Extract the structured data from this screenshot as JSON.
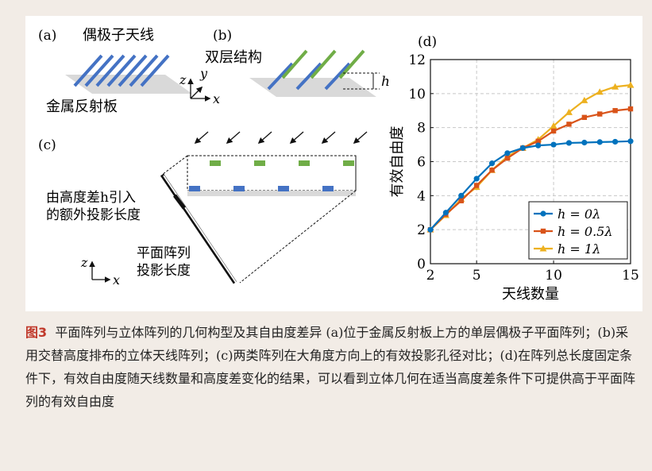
{
  "panel_a": {
    "label": "(a)",
    "title": "偶极子天线",
    "reflector": "金属反射板"
  },
  "panel_b": {
    "label": "(b)",
    "title": "双层结构",
    "height_label": "h"
  },
  "axes_labels": {
    "z": "z",
    "y": "y",
    "x": "x"
  },
  "panel_c": {
    "label": "(c)",
    "extra_line1": "由高度差h引入",
    "extra_line2": "的额外投影长度",
    "planar_line1": "平面阵列",
    "planar_line2": "投影长度",
    "z": "z",
    "x": "x"
  },
  "colors": {
    "blue": "#4472c4",
    "green": "#70ad47",
    "series_blue": "#0072bd",
    "series_orange": "#d95319",
    "series_yellow": "#edb120",
    "caption_label": "#c0392b",
    "background": "#f2ece6"
  },
  "chart_data": {
    "type": "line",
    "panel_label": "(d)",
    "xlabel": "天线数量",
    "ylabel": "有效自由度",
    "xlim": [
      2,
      15
    ],
    "ylim": [
      0,
      12
    ],
    "xticks": [
      2,
      5,
      10,
      15
    ],
    "yticks": [
      0,
      2,
      4,
      6,
      8,
      10,
      12
    ],
    "grid": true,
    "legend_position": "bottom-right",
    "x": [
      2,
      3,
      4,
      5,
      6,
      7,
      8,
      9,
      10,
      11,
      12,
      13,
      14,
      15
    ],
    "series": [
      {
        "name": "h = 0λ",
        "color": "#0072bd",
        "marker": "circle",
        "values": [
          2.0,
          3.0,
          4.0,
          5.0,
          5.9,
          6.5,
          6.8,
          6.95,
          7.0,
          7.1,
          7.12,
          7.15,
          7.17,
          7.2
        ]
      },
      {
        "name": "h = 0.5λ",
        "color": "#d95319",
        "marker": "square",
        "values": [
          2.0,
          2.9,
          3.7,
          4.6,
          5.5,
          6.2,
          6.8,
          7.2,
          7.8,
          8.2,
          8.6,
          8.8,
          9.0,
          9.1
        ]
      },
      {
        "name": "h = 1λ",
        "color": "#edb120",
        "marker": "triangle",
        "values": [
          2.0,
          2.85,
          3.8,
          4.5,
          5.5,
          6.3,
          6.8,
          7.3,
          8.1,
          8.9,
          9.6,
          10.1,
          10.4,
          10.5
        ]
      }
    ]
  },
  "caption": {
    "label": "图3",
    "text": "平面阵列与立体阵列的几何构型及其自由度差异 (a)位于金属反射板上方的单层偶极子平面阵列；(b)采用交替高度排布的立体天线阵列；(c)两类阵列在大角度方向上的有效投影孔径对比；(d)在阵列总长度固定条件下，有效自由度随天线数量和高度差变化的结果，可以看到立体几何在适当高度差条件下可提供高于平面阵列的有效自由度"
  }
}
